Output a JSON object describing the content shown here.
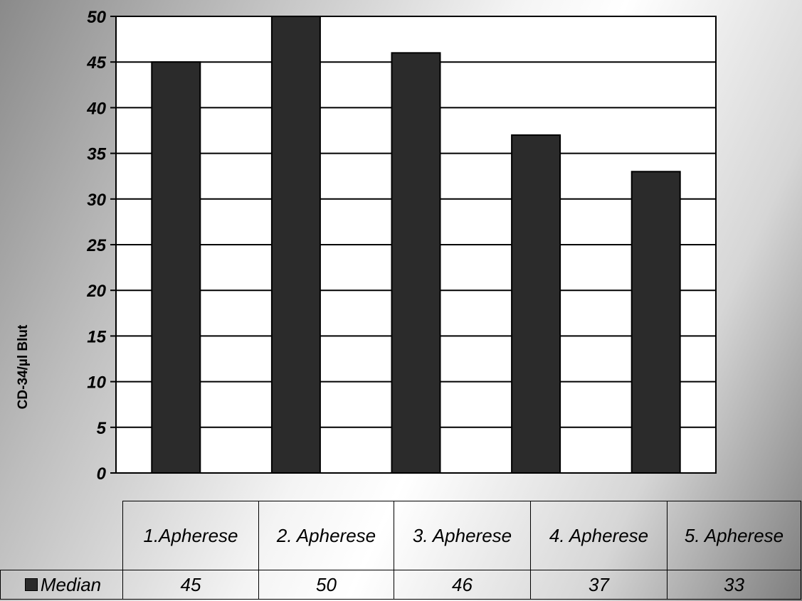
{
  "chart_data": {
    "type": "bar",
    "title": "",
    "xlabel": "",
    "ylabel": "CD-34/µl Blut",
    "ylim": [
      0,
      50
    ],
    "yticks": [
      0,
      5,
      10,
      15,
      20,
      25,
      30,
      35,
      40,
      45,
      50
    ],
    "grid": true,
    "categories": [
      "1.Apherese",
      "2. Apherese",
      "3. Apherese",
      "4. Apherese",
      "5. Apherese"
    ],
    "series": [
      {
        "name": "Median",
        "values": [
          45,
          50,
          46,
          37,
          33
        ],
        "color": "#2b2b2b"
      }
    ],
    "legend": "data-table-row",
    "colors": {
      "bar": "#2b2b2b",
      "plot_background": "#ffffff",
      "grid": "#000000"
    }
  }
}
